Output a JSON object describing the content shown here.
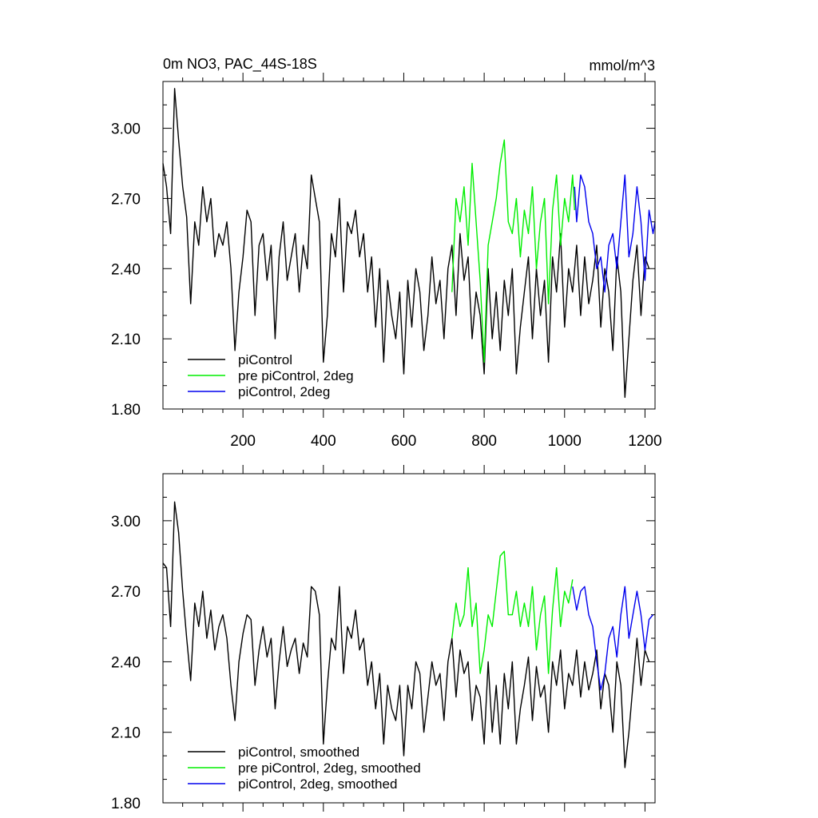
{
  "colors": {
    "black": "#000000",
    "green": "#00ee00",
    "blue": "#0000ee"
  },
  "chart_data": [
    {
      "type": "line",
      "title": "0m NO3, PAC_44S-18S",
      "units_label": "mmol/m^3",
      "xlim": [
        1,
        1225
      ],
      "ylim": [
        1.8,
        3.2
      ],
      "x_ticks": [
        200,
        400,
        600,
        800,
        1000,
        1200
      ],
      "x_tick_labels": [
        "200",
        "400",
        "600",
        "800",
        "1000",
        "1200"
      ],
      "y_ticks": [
        1.8,
        2.1,
        2.4,
        2.7,
        3.0
      ],
      "y_tick_labels": [
        "1.80",
        "2.10",
        "2.40",
        "2.70",
        "3.00"
      ],
      "legend_position": "bottom-left",
      "series": [
        {
          "name": "piControl",
          "color": "#000000",
          "x": [
            1,
            10,
            20,
            30,
            40,
            50,
            60,
            70,
            80,
            90,
            100,
            110,
            120,
            130,
            140,
            150,
            160,
            170,
            180,
            190,
            200,
            210,
            220,
            230,
            240,
            250,
            260,
            270,
            280,
            290,
            300,
            310,
            320,
            330,
            340,
            350,
            360,
            370,
            380,
            390,
            400,
            410,
            420,
            430,
            440,
            450,
            460,
            470,
            480,
            490,
            500,
            510,
            520,
            530,
            540,
            550,
            560,
            570,
            580,
            590,
            600,
            610,
            620,
            630,
            640,
            650,
            660,
            670,
            680,
            690,
            700,
            710,
            720,
            730,
            740,
            750,
            760,
            770,
            780,
            790,
            800,
            810,
            820,
            830,
            840,
            850,
            860,
            870,
            880,
            890,
            900,
            910,
            920,
            930,
            940,
            950,
            960,
            970,
            980,
            990,
            1000,
            1010,
            1020,
            1030,
            1040,
            1050,
            1060,
            1070,
            1080,
            1090,
            1100,
            1110,
            1120,
            1130,
            1140,
            1150,
            1160,
            1170,
            1180,
            1190,
            1200,
            1210
          ],
          "y": [
            2.85,
            2.75,
            2.55,
            3.17,
            2.95,
            2.75,
            2.62,
            2.25,
            2.6,
            2.5,
            2.75,
            2.6,
            2.7,
            2.45,
            2.55,
            2.5,
            2.6,
            2.4,
            2.05,
            2.3,
            2.45,
            2.65,
            2.6,
            2.2,
            2.5,
            2.55,
            2.35,
            2.5,
            2.1,
            2.45,
            2.6,
            2.35,
            2.45,
            2.55,
            2.3,
            2.5,
            2.4,
            2.8,
            2.7,
            2.6,
            2.0,
            2.2,
            2.55,
            2.45,
            2.7,
            2.3,
            2.6,
            2.55,
            2.65,
            2.45,
            2.55,
            2.3,
            2.45,
            2.15,
            2.4,
            2.0,
            2.35,
            2.2,
            2.1,
            2.3,
            1.95,
            2.35,
            2.15,
            2.4,
            2.3,
            2.05,
            2.2,
            2.45,
            2.25,
            2.35,
            2.1,
            2.4,
            2.5,
            2.2,
            2.55,
            2.35,
            2.45,
            2.1,
            2.3,
            2.2,
            1.95,
            2.4,
            2.1,
            2.3,
            2.05,
            2.35,
            2.2,
            2.4,
            1.95,
            2.15,
            2.3,
            2.45,
            2.1,
            2.4,
            2.2,
            2.35,
            2.0,
            2.45,
            2.3,
            2.55,
            2.15,
            2.4,
            2.3,
            2.5,
            2.2,
            2.45,
            2.25,
            2.35,
            2.5,
            2.15,
            2.4,
            2.3,
            2.05,
            2.45,
            2.3,
            1.85,
            2.1,
            2.35,
            2.5,
            2.2,
            2.45,
            2.4
          ]
        },
        {
          "name": "pre piControl, 2deg",
          "color": "#00ee00",
          "x": [
            720,
            730,
            740,
            750,
            760,
            770,
            780,
            790,
            800,
            810,
            820,
            830,
            840,
            850,
            860,
            870,
            880,
            890,
            900,
            910,
            920,
            930,
            940,
            950,
            960,
            970,
            980,
            990,
            1000,
            1010,
            1020,
            1025
          ],
          "y": [
            2.3,
            2.7,
            2.6,
            2.75,
            2.5,
            2.85,
            2.6,
            2.35,
            2.0,
            2.5,
            2.6,
            2.7,
            2.85,
            2.95,
            2.6,
            2.55,
            2.7,
            2.45,
            2.65,
            2.55,
            2.75,
            2.4,
            2.6,
            2.7,
            2.25,
            2.65,
            2.8,
            2.5,
            2.7,
            2.6,
            2.8,
            2.65
          ]
        },
        {
          "name": "piControl, 2deg",
          "color": "#0000ee",
          "x": [
            1025,
            1030,
            1040,
            1050,
            1060,
            1070,
            1080,
            1090,
            1100,
            1110,
            1120,
            1130,
            1140,
            1150,
            1160,
            1170,
            1180,
            1190,
            1200,
            1210,
            1220,
            1225
          ],
          "y": [
            2.75,
            2.6,
            2.8,
            2.75,
            2.6,
            2.55,
            2.4,
            2.45,
            2.3,
            2.5,
            2.55,
            2.4,
            2.6,
            2.8,
            2.45,
            2.55,
            2.75,
            2.6,
            2.35,
            2.65,
            2.55,
            2.6
          ]
        }
      ]
    },
    {
      "type": "line",
      "title": "",
      "xlim": [
        1,
        1225
      ],
      "ylim": [
        1.8,
        3.2
      ],
      "x_ticks": [
        200,
        400,
        600,
        800,
        1000,
        1200
      ],
      "x_tick_labels": [],
      "y_ticks": [
        1.8,
        2.1,
        2.4,
        2.7,
        3.0
      ],
      "y_tick_labels": [
        "1.80",
        "2.10",
        "2.40",
        "2.70",
        "3.00"
      ],
      "legend_position": "bottom-left",
      "series": [
        {
          "name": "piControl, smoothed",
          "color": "#000000",
          "x": [
            1,
            10,
            20,
            30,
            40,
            50,
            60,
            70,
            80,
            90,
            100,
            110,
            120,
            130,
            140,
            150,
            160,
            170,
            180,
            190,
            200,
            210,
            220,
            230,
            240,
            250,
            260,
            270,
            280,
            290,
            300,
            310,
            320,
            330,
            340,
            350,
            360,
            370,
            380,
            390,
            400,
            410,
            420,
            430,
            440,
            450,
            460,
            470,
            480,
            490,
            500,
            510,
            520,
            530,
            540,
            550,
            560,
            570,
            580,
            590,
            600,
            610,
            620,
            630,
            640,
            650,
            660,
            670,
            680,
            690,
            700,
            710,
            720,
            730,
            740,
            750,
            760,
            770,
            780,
            790,
            800,
            810,
            820,
            830,
            840,
            850,
            860,
            870,
            880,
            890,
            900,
            910,
            920,
            930,
            940,
            950,
            960,
            970,
            980,
            990,
            1000,
            1010,
            1020,
            1030,
            1040,
            1050,
            1060,
            1070,
            1080,
            1090,
            1100,
            1110,
            1120,
            1130,
            1140,
            1150,
            1160,
            1170,
            1180,
            1190,
            1200,
            1210
          ],
          "y": [
            2.82,
            2.8,
            2.55,
            3.08,
            2.95,
            2.7,
            2.5,
            2.32,
            2.65,
            2.55,
            2.7,
            2.5,
            2.62,
            2.45,
            2.55,
            2.6,
            2.5,
            2.3,
            2.15,
            2.4,
            2.52,
            2.6,
            2.58,
            2.3,
            2.45,
            2.55,
            2.42,
            2.5,
            2.2,
            2.4,
            2.55,
            2.38,
            2.45,
            2.5,
            2.35,
            2.48,
            2.42,
            2.72,
            2.7,
            2.6,
            2.05,
            2.3,
            2.5,
            2.45,
            2.72,
            2.35,
            2.55,
            2.5,
            2.62,
            2.45,
            2.5,
            2.3,
            2.4,
            2.2,
            2.35,
            2.05,
            2.3,
            2.2,
            2.15,
            2.3,
            2.0,
            2.3,
            2.2,
            2.4,
            2.35,
            2.1,
            2.25,
            2.4,
            2.3,
            2.35,
            2.15,
            2.4,
            2.5,
            2.25,
            2.45,
            2.35,
            2.4,
            2.15,
            2.3,
            2.25,
            2.05,
            2.4,
            2.1,
            2.3,
            2.05,
            2.35,
            2.2,
            2.4,
            2.05,
            2.2,
            2.3,
            2.42,
            2.15,
            2.38,
            2.25,
            2.3,
            2.1,
            2.4,
            2.3,
            2.45,
            2.2,
            2.35,
            2.3,
            2.45,
            2.25,
            2.4,
            2.28,
            2.35,
            2.45,
            2.2,
            2.35,
            2.3,
            2.1,
            2.4,
            2.3,
            1.95,
            2.1,
            2.3,
            2.5,
            2.3,
            2.45,
            2.4
          ]
        },
        {
          "name": "pre piControl, 2deg, smoothed",
          "color": "#00ee00",
          "x": [
            720,
            730,
            740,
            750,
            760,
            770,
            780,
            790,
            800,
            810,
            820,
            830,
            840,
            850,
            860,
            870,
            880,
            890,
            900,
            910,
            920,
            930,
            940,
            950,
            960,
            970,
            980,
            990,
            1000,
            1010,
            1020
          ],
          "y": [
            2.5,
            2.65,
            2.55,
            2.6,
            2.8,
            2.55,
            2.65,
            2.35,
            2.45,
            2.6,
            2.55,
            2.7,
            2.85,
            2.87,
            2.6,
            2.6,
            2.7,
            2.55,
            2.65,
            2.55,
            2.72,
            2.45,
            2.6,
            2.68,
            2.35,
            2.62,
            2.8,
            2.55,
            2.7,
            2.65,
            2.75
          ]
        },
        {
          "name": "piControl, 2deg, smoothed",
          "color": "#0000ee",
          "x": [
            1020,
            1030,
            1040,
            1050,
            1060,
            1070,
            1080,
            1090,
            1100,
            1110,
            1120,
            1130,
            1140,
            1150,
            1160,
            1170,
            1180,
            1190,
            1200,
            1210,
            1220
          ],
          "y": [
            2.72,
            2.62,
            2.7,
            2.72,
            2.6,
            2.55,
            2.4,
            2.28,
            2.35,
            2.5,
            2.55,
            2.42,
            2.6,
            2.72,
            2.5,
            2.6,
            2.7,
            2.6,
            2.45,
            2.58,
            2.6
          ]
        }
      ]
    }
  ]
}
